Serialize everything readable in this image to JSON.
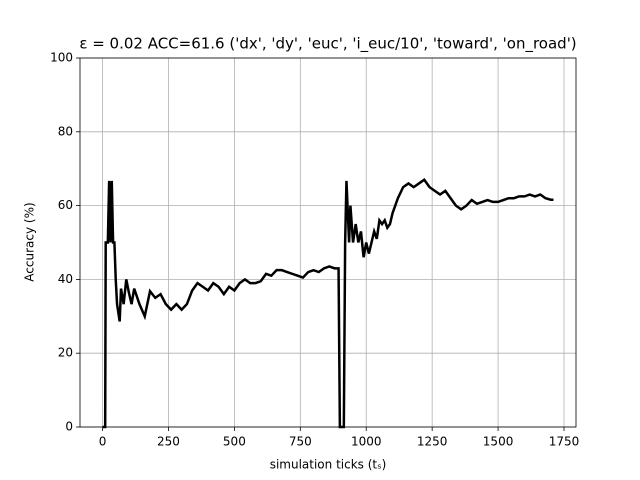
{
  "chart_data": {
    "type": "line",
    "title": "ε = 0.02 ACC=61.6 ('dx', 'dy', 'euc', 'i_euc/10', 'toward', 'on_road')",
    "xlabel": "simulation ticks (tₛ)",
    "ylabel": "Accuracy (%)",
    "x": [
      0,
      10,
      12,
      20,
      25,
      30,
      35,
      40,
      45,
      50,
      55,
      65,
      70,
      80,
      90,
      100,
      110,
      120,
      140,
      160,
      180,
      200,
      220,
      240,
      260,
      280,
      300,
      320,
      340,
      360,
      380,
      400,
      420,
      440,
      460,
      480,
      500,
      520,
      540,
      560,
      580,
      600,
      620,
      640,
      660,
      680,
      700,
      720,
      740,
      760,
      780,
      800,
      820,
      840,
      860,
      880,
      895,
      900,
      915,
      920,
      925,
      935,
      940,
      950,
      960,
      970,
      980,
      990,
      1000,
      1010,
      1020,
      1030,
      1040,
      1050,
      1060,
      1070,
      1080,
      1090,
      1100,
      1120,
      1140,
      1160,
      1180,
      1200,
      1220,
      1240,
      1260,
      1280,
      1300,
      1320,
      1340,
      1360,
      1380,
      1400,
      1420,
      1440,
      1460,
      1480,
      1500,
      1520,
      1540,
      1560,
      1580,
      1600,
      1620,
      1640,
      1660,
      1680,
      1700,
      1710
    ],
    "series": [
      {
        "color": "#000000",
        "values": [
          0,
          0,
          50,
          50,
          66.7,
          50,
          66.7,
          50,
          50,
          40,
          33.3,
          28.6,
          37.5,
          33.3,
          40,
          36.4,
          33.3,
          37.5,
          33.3,
          30,
          36.8,
          35,
          36,
          33.3,
          31.8,
          33.3,
          31.8,
          33.3,
          37,
          39,
          38,
          37,
          39,
          38,
          36,
          38,
          37,
          39,
          40,
          39,
          39,
          39.5,
          41.5,
          41,
          42.5,
          42.5,
          42,
          41.5,
          41,
          40.5,
          42,
          42.5,
          42,
          43,
          43.5,
          43,
          43,
          0,
          0,
          50,
          66.7,
          50,
          60,
          50,
          55,
          50,
          53,
          46,
          50,
          47,
          50,
          53,
          51,
          56,
          55,
          56,
          54,
          55,
          58,
          62,
          65,
          66,
          65,
          66,
          67,
          65,
          64,
          63,
          64,
          62,
          60,
          59,
          60,
          61.5,
          60.5,
          61,
          61.5,
          61,
          61,
          61.5,
          62,
          62,
          62.5,
          62.5,
          63,
          62.5,
          63,
          62,
          61.6,
          61.6
        ]
      }
    ],
    "xlim": [
      -85.5,
      1795.5
    ],
    "xticks": [
      0,
      250,
      500,
      750,
      1000,
      1250,
      1500,
      1750
    ],
    "ylim": [
      0,
      100
    ],
    "yticks": [
      0,
      20,
      40,
      60,
      80,
      100
    ],
    "grid": true
  }
}
